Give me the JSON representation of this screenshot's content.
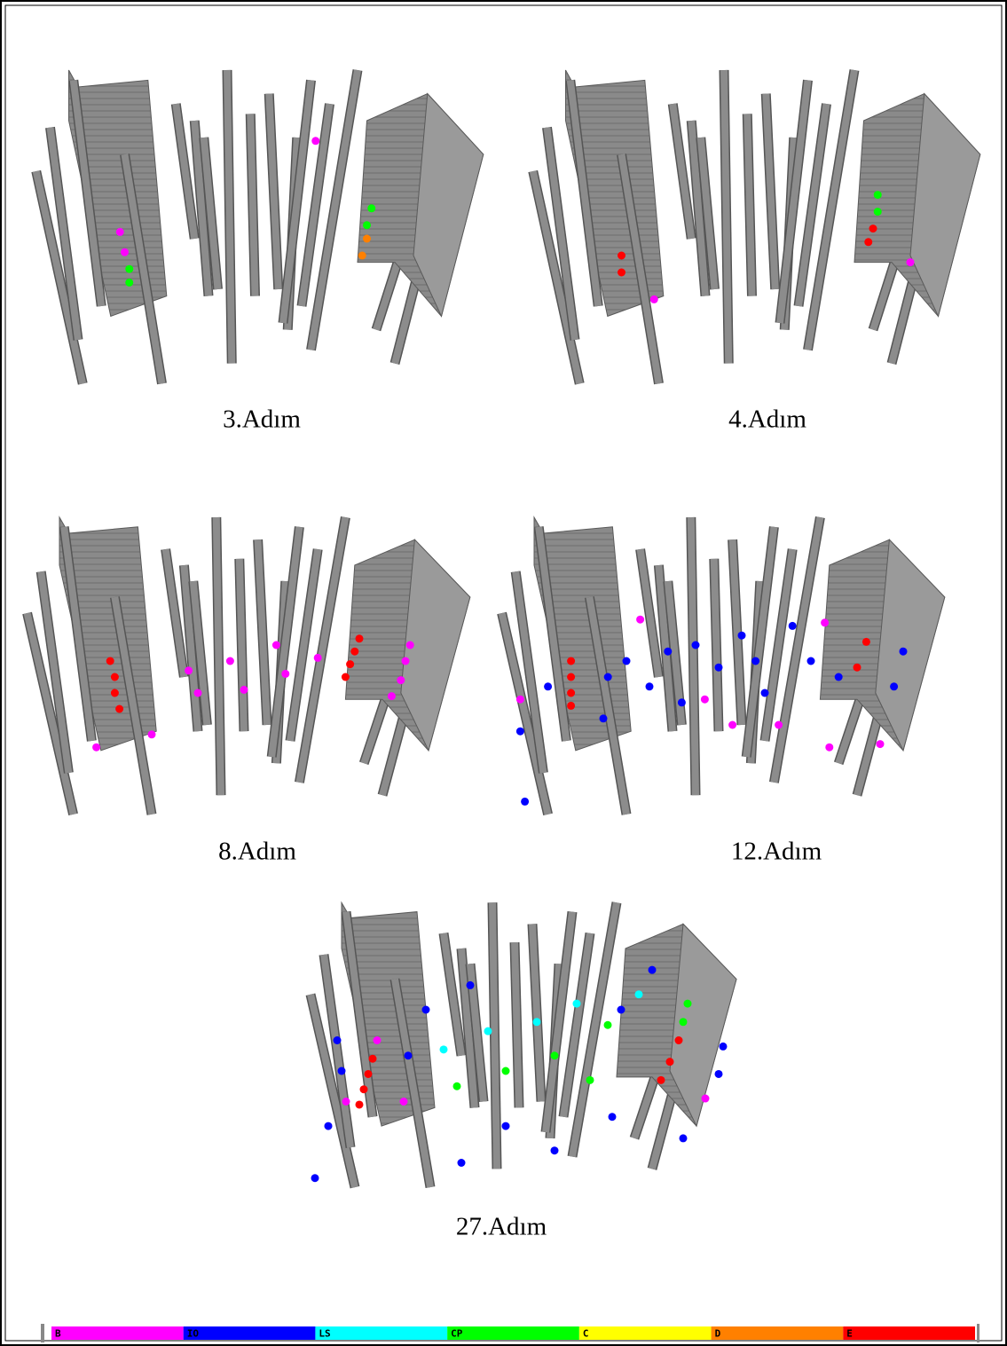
{
  "figures": [
    {
      "caption": "3.Adım"
    },
    {
      "caption": "4.Adım"
    },
    {
      "caption": "8.Adım"
    },
    {
      "caption": "12.Adım"
    },
    {
      "caption": "27.Adım"
    }
  ],
  "legend": {
    "items": [
      {
        "label": "B",
        "color": "#ff00ff"
      },
      {
        "label": "IO",
        "color": "#0000ff"
      },
      {
        "label": "LS",
        "color": "#00ffff"
      },
      {
        "label": "CP",
        "color": "#00ff00"
      },
      {
        "label": "C",
        "color": "#ffff00"
      },
      {
        "label": "D",
        "color": "#ff8000"
      },
      {
        "label": "E",
        "color": "#ff0000"
      }
    ]
  }
}
